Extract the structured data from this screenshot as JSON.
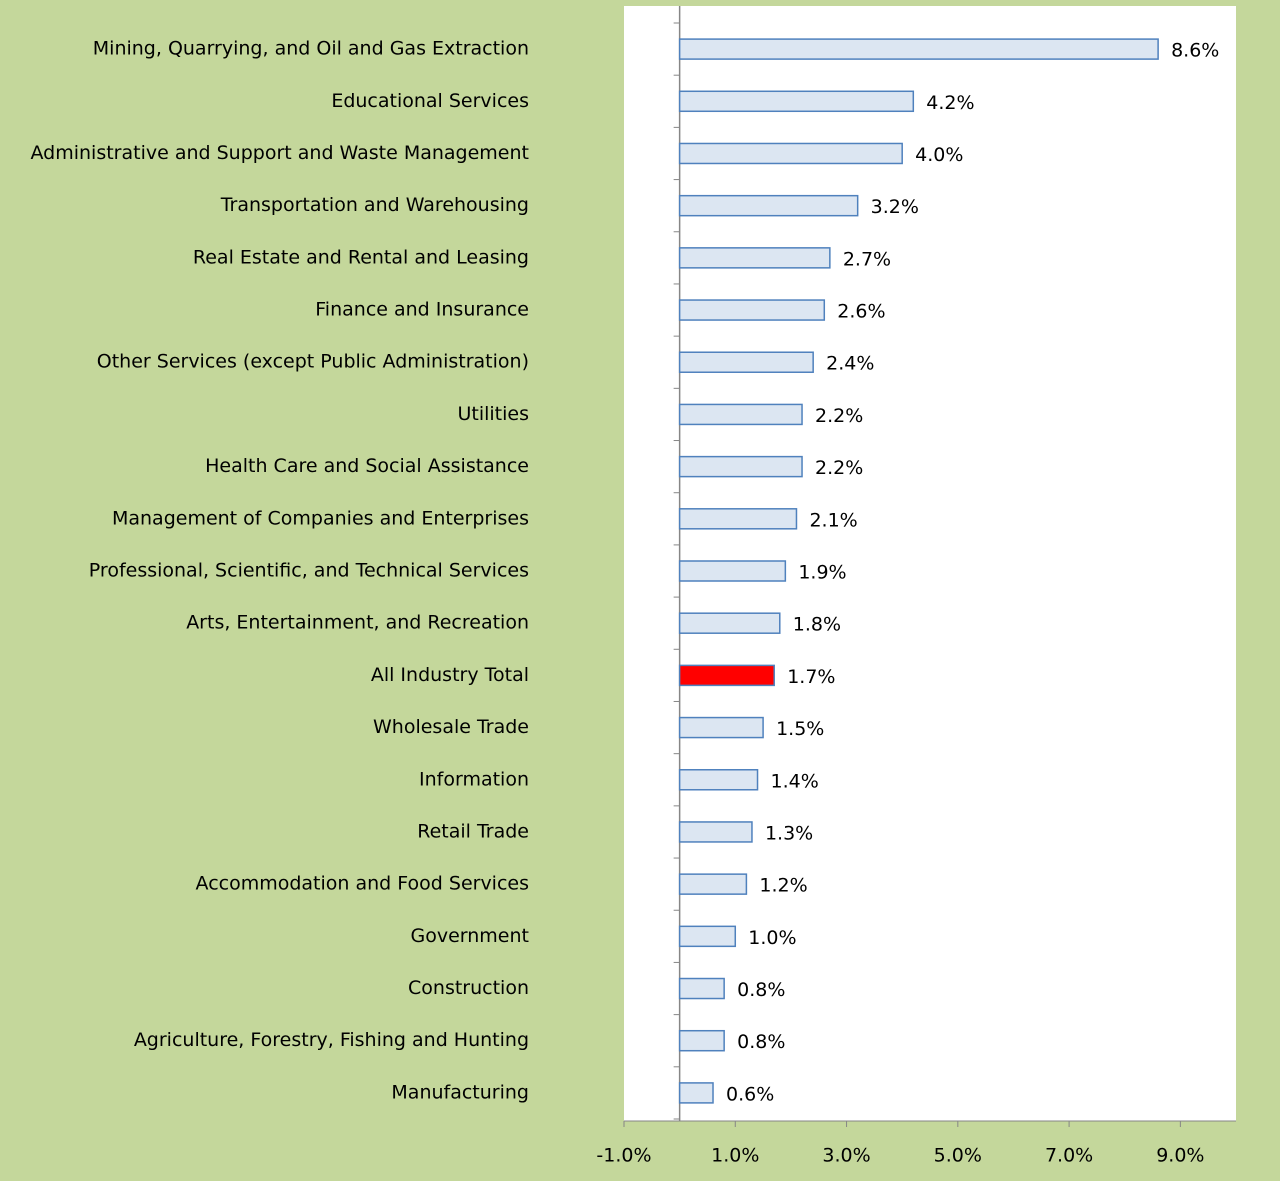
{
  "chart_data": {
    "type": "barh",
    "categories": [
      "Mining, Quarrying, and Oil and Gas Extraction",
      "Educational Services",
      "Administrative and Support and Waste Management",
      "Transportation and Warehousing",
      "Real Estate and Rental and Leasing",
      "Finance and Insurance",
      "Other Services (except Public Administration)",
      "Utilities",
      "Health Care and Social Assistance",
      "Management of Companies and Enterprises",
      "Professional, Scientific, and Technical Services",
      "Arts, Entertainment, and Recreation",
      "All Industry Total",
      "Wholesale Trade",
      "Information",
      "Retail Trade",
      "Accommodation and Food Services",
      "Government",
      "Construction",
      "Agriculture, Forestry, Fishing and Hunting",
      "Manufacturing"
    ],
    "values": [
      8.6,
      4.2,
      4.0,
      3.2,
      2.7,
      2.6,
      2.4,
      2.2,
      2.2,
      2.1,
      1.9,
      1.8,
      1.7,
      1.5,
      1.4,
      1.3,
      1.2,
      1.0,
      0.8,
      0.8,
      0.6
    ],
    "value_labels": [
      "8.6%",
      "4.2%",
      "4.0%",
      "3.2%",
      "2.7%",
      "2.6%",
      "2.4%",
      "2.2%",
      "2.2%",
      "2.1%",
      "1.9%",
      "1.8%",
      "1.7%",
      "1.5%",
      "1.4%",
      "1.3%",
      "1.2%",
      "1.0%",
      "0.8%",
      "0.8%",
      "0.6%"
    ],
    "colors": [
      "#dce6f2",
      "#dce6f2",
      "#dce6f2",
      "#dce6f2",
      "#dce6f2",
      "#dce6f2",
      "#dce6f2",
      "#dce6f2",
      "#dce6f2",
      "#dce6f2",
      "#dce6f2",
      "#dce6f2",
      "#ff0000",
      "#dce6f2",
      "#dce6f2",
      "#dce6f2",
      "#dce6f2",
      "#dce6f2",
      "#dce6f2",
      "#dce6f2",
      "#dce6f2"
    ],
    "edge_color": "#4f81bd",
    "xlim": [
      -1,
      10
    ],
    "xticks": [
      {
        "value": -1,
        "label": "-1.0%"
      },
      {
        "value": 1,
        "label": "1.0%"
      },
      {
        "value": 3,
        "label": "3.0%"
      },
      {
        "value": 5,
        "label": "5.0%"
      },
      {
        "value": 7,
        "label": "7.0%"
      },
      {
        "value": 9,
        "label": "9.0%"
      }
    ],
    "grid": false
  }
}
